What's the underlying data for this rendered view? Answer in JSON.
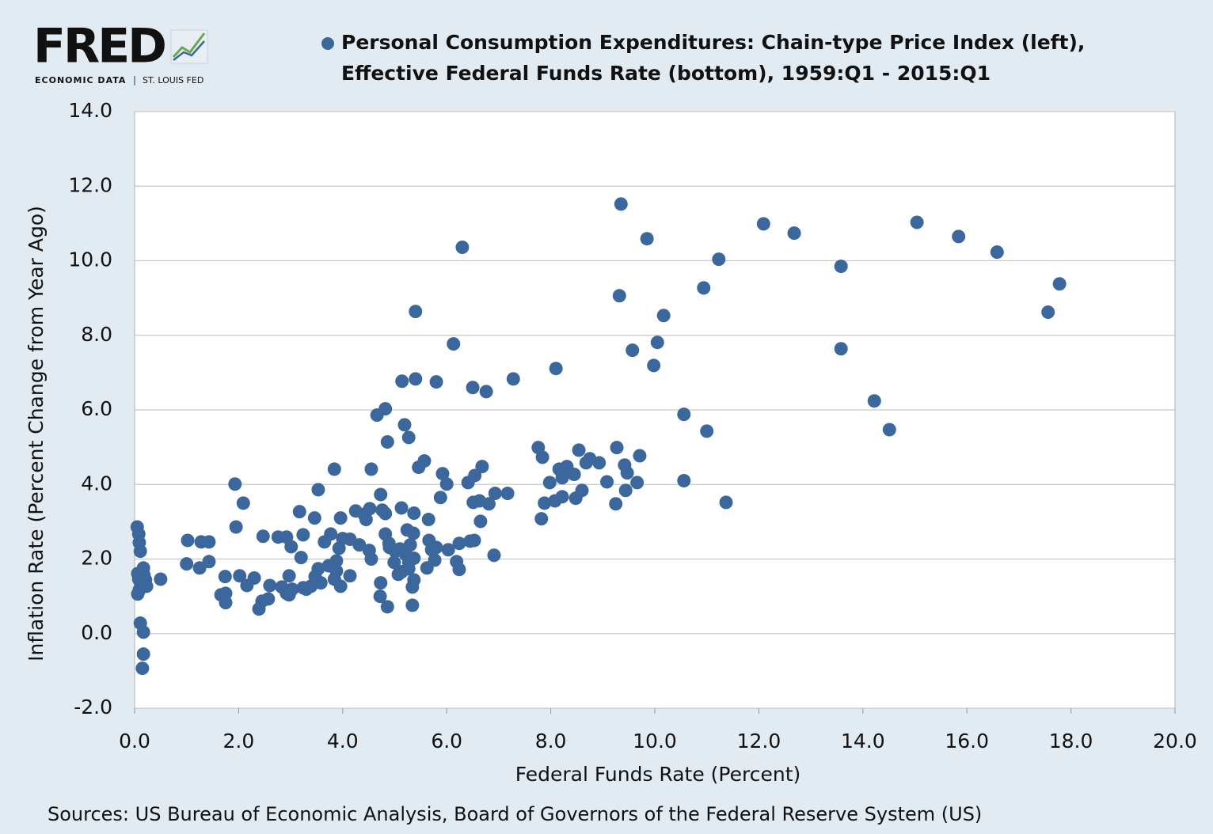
{
  "chart_data": {
    "type": "scatter",
    "logo": {
      "name": "FRED",
      "subtitle": "ECONOMIC DATA",
      "org": "ST. LOUIS FED"
    },
    "title": [
      "Personal Consumption Expenditures: Chain-type Price Index (left),",
      "Effective Federal Funds Rate (bottom), 1959:Q1 - 2015:Q1"
    ],
    "xlabel": "Federal Funds Rate (Percent)",
    "ylabel": "Inflation Rate (Percent Change from Year Ago)",
    "source": "Sources: US Bureau of Economic Analysis, Board of Governors of the Federal Reserve System (US)",
    "color": "#3b679c",
    "grid": true,
    "xlim": [
      0,
      20
    ],
    "ylim": [
      -2,
      14
    ],
    "xticks": [
      {
        "value": 0,
        "label": "0.0"
      },
      {
        "value": 2,
        "label": "2.0"
      },
      {
        "value": 4,
        "label": "4.0"
      },
      {
        "value": 6,
        "label": "6.0"
      },
      {
        "value": 8,
        "label": "8.0"
      },
      {
        "value": 10,
        "label": "10.0"
      },
      {
        "value": 12,
        "label": "12.0"
      },
      {
        "value": 14,
        "label": "14.0"
      },
      {
        "value": 16,
        "label": "16.0"
      },
      {
        "value": 18,
        "label": "18.0"
      },
      {
        "value": 20,
        "label": "20.0"
      }
    ],
    "yticks": [
      {
        "value": -2,
        "label": "-2.0"
      },
      {
        "value": 0,
        "label": "0.0"
      },
      {
        "value": 2,
        "label": "2.0"
      },
      {
        "value": 4,
        "label": "4.0"
      },
      {
        "value": 6,
        "label": "6.0"
      },
      {
        "value": 8,
        "label": "8.0"
      },
      {
        "value": 10,
        "label": "10.0"
      },
      {
        "value": 12,
        "label": "12.0"
      },
      {
        "value": 14,
        "label": "14.0"
      }
    ],
    "x": [
      9.35,
      6.3,
      9.85,
      12.09,
      12.68,
      15.04,
      15.84,
      16.58,
      11.23,
      13.58,
      17.78,
      17.56,
      10.94,
      9.32,
      10.17,
      5.4,
      6.13,
      13.58,
      9.57,
      10.05,
      9.98,
      8.1,
      7.28,
      5.4,
      5.14,
      5.8,
      6.5,
      6.76,
      14.22,
      14.51,
      4.82,
      4.66,
      10.56,
      11.0,
      5.19,
      5.27,
      4.86,
      9.27,
      7.76,
      7.84,
      8.54,
      9.71,
      8.75,
      8.93,
      8.68,
      9.42,
      8.31,
      5.57,
      5.46,
      6.68,
      8.16,
      9.47,
      4.55,
      3.84,
      5.92,
      6.54,
      8.22,
      8.45,
      9.08,
      9.66,
      10.56,
      7.98,
      6.41,
      6.0,
      1.93,
      8.6,
      9.44,
      3.53,
      6.93,
      7.17,
      8.22,
      8.48,
      8.08,
      5.88,
      4.73,
      6.51,
      6.63,
      6.81,
      7.88,
      9.25,
      11.37,
      2.09,
      5.13,
      3.17,
      4.25,
      4.52,
      4.76,
      4.41,
      4.82,
      5.37,
      3.46,
      3.96,
      4.45,
      5.65,
      7.82,
      6.65,
      0.05,
      0.08,
      1.95,
      5.24,
      5.36,
      4.82,
      3.77,
      2.47,
      3.24,
      2.92,
      2.76,
      1.02,
      1.28,
      1.43,
      0.09,
      4.0,
      4.14,
      6.53,
      6.45,
      5.66,
      3.65,
      6.24,
      4.89,
      4.32,
      5.3,
      3.01,
      4.9,
      3.93,
      5.8,
      5.1,
      5.71,
      6.03,
      4.51,
      5.01,
      0.11,
      5.21,
      6.91,
      3.2,
      4.55,
      5.37,
      5.77,
      3.88,
      6.19,
      5.27,
      1.43,
      4.99,
      1.0,
      0.17,
      1.25,
      3.73,
      5.62,
      6.24,
      3.53,
      5.27,
      3.88,
      5.14,
      0.06,
      0.11,
      5.07,
      0.18,
      4.14,
      2.97,
      3.47,
      1.74,
      2.02,
      2.3,
      0.08,
      0.5,
      0.21,
      3.84,
      5.37,
      3.58,
      4.73,
      0.12,
      3.39,
      2.16,
      2.6,
      0.23,
      3.96,
      5.34,
      3.24,
      2.83,
      0.09,
      3.03,
      3.3,
      0.06,
      1.75,
      2.92,
      1.66,
      2.97,
      4.72,
      2.57,
      2.45,
      1.75,
      4.86,
      5.34,
      2.39,
      0.11,
      0.17,
      0.17,
      0.15
    ],
    "values": [
      11.52,
      10.36,
      10.59,
      10.99,
      10.74,
      11.03,
      10.65,
      10.23,
      10.04,
      9.85,
      9.38,
      8.62,
      9.27,
      9.06,
      8.53,
      8.64,
      7.77,
      7.64,
      7.6,
      7.81,
      7.19,
      7.11,
      6.83,
      6.83,
      6.77,
      6.75,
      6.6,
      6.49,
      6.24,
      5.47,
      6.03,
      5.86,
      5.88,
      5.43,
      5.6,
      5.26,
      5.14,
      4.99,
      4.99,
      4.73,
      4.92,
      4.77,
      4.69,
      4.58,
      4.58,
      4.52,
      4.48,
      4.63,
      4.46,
      4.48,
      4.41,
      4.31,
      4.41,
      4.41,
      4.29,
      4.24,
      4.18,
      4.27,
      4.07,
      4.05,
      4.1,
      4.05,
      4.05,
      4.01,
      4.01,
      3.84,
      3.84,
      3.86,
      3.76,
      3.76,
      3.67,
      3.63,
      3.56,
      3.65,
      3.73,
      3.52,
      3.56,
      3.48,
      3.5,
      3.48,
      3.52,
      3.5,
      3.37,
      3.27,
      3.29,
      3.35,
      3.31,
      3.2,
      3.22,
      3.23,
      3.1,
      3.1,
      3.06,
      3.06,
      3.08,
      3.01,
      2.86,
      2.67,
      2.86,
      2.78,
      2.69,
      2.67,
      2.67,
      2.61,
      2.65,
      2.59,
      2.59,
      2.5,
      2.46,
      2.46,
      2.44,
      2.55,
      2.53,
      2.5,
      2.48,
      2.5,
      2.46,
      2.42,
      2.42,
      2.38,
      2.38,
      2.33,
      2.31,
      2.29,
      2.31,
      2.27,
      2.25,
      2.25,
      2.23,
      2.21,
      2.21,
      2.12,
      2.1,
      2.04,
      2.0,
      2.02,
      1.97,
      1.95,
      1.93,
      1.91,
      1.93,
      1.91,
      1.87,
      1.76,
      1.76,
      1.82,
      1.76,
      1.72,
      1.74,
      1.74,
      1.68,
      1.66,
      1.61,
      1.57,
      1.59,
      1.57,
      1.55,
      1.55,
      1.53,
      1.53,
      1.55,
      1.49,
      1.46,
      1.46,
      1.44,
      1.46,
      1.44,
      1.36,
      1.36,
      1.29,
      1.27,
      1.29,
      1.29,
      1.27,
      1.27,
      1.25,
      1.23,
      1.25,
      1.17,
      1.19,
      1.19,
      1.06,
      1.08,
      1.08,
      1.04,
      1.04,
      1.0,
      0.93,
      0.87,
      0.83,
      0.72,
      0.76,
      0.66,
      0.28,
      0.04,
      -0.55,
      -0.93
    ]
  }
}
